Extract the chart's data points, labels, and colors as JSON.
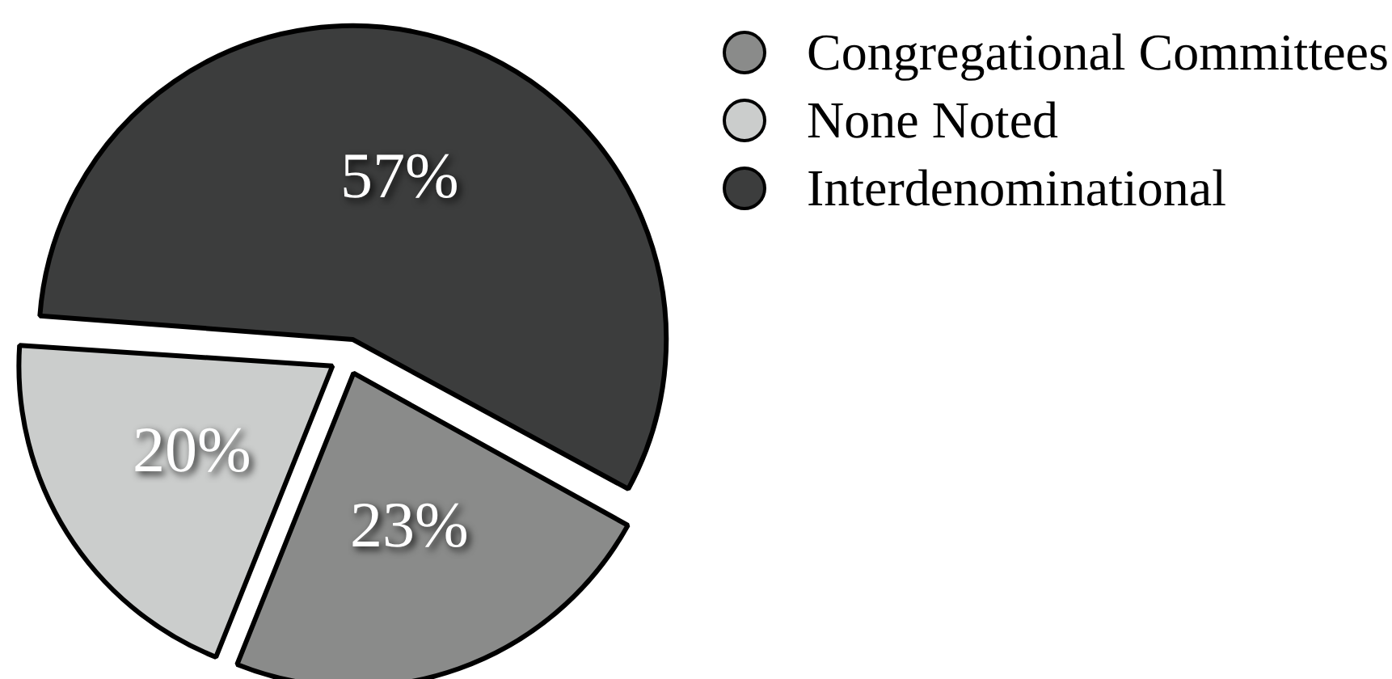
{
  "chart_data": {
    "type": "pie",
    "categories": [
      "Congregational Committees",
      "None Noted",
      "Interdenominational"
    ],
    "values": [
      23,
      20,
      57
    ],
    "colors": [
      "#8a8b8a",
      "#cbcdcc",
      "#3c3d3d"
    ],
    "value_labels": [
      "23%",
      "20%",
      "57%"
    ],
    "legend": "top right"
  }
}
